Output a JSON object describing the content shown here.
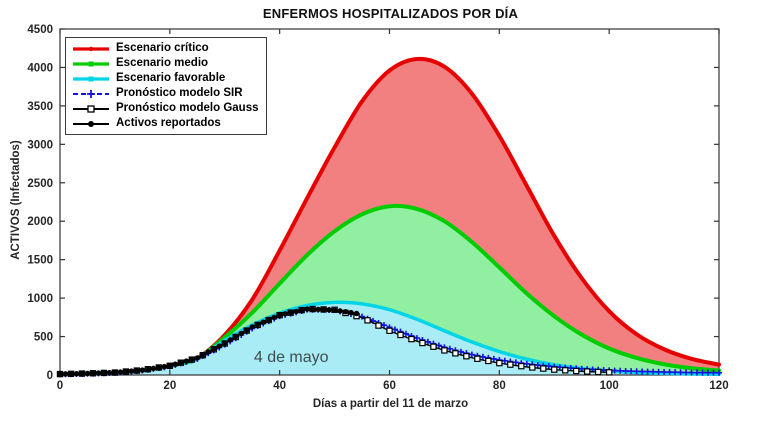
{
  "title": "ENFERMOS HOSPITALIZADOS POR DÍA",
  "chart_data": {
    "type": "line",
    "title": "ENFERMOS HOSPITALIZADOS POR DÍA",
    "xlabel": "Días a partir del 11 de marzo",
    "ylabel": "ACTIVOS (Infectados)",
    "xlim": [
      0,
      120
    ],
    "ylim": [
      0,
      4500
    ],
    "x_ticks": [
      0,
      20,
      40,
      60,
      80,
      100,
      120
    ],
    "y_ticks": [
      0,
      500,
      1000,
      1500,
      2000,
      2500,
      3000,
      3500,
      4000,
      4500
    ],
    "grid": false,
    "legend_position": "top-left",
    "axis_color": "#333333",
    "tick_label_color": "#262626",
    "annotation": {
      "text": "4 de mayo",
      "day": 35.3,
      "value": 170,
      "color": "#3d4d4d"
    },
    "series": [
      {
        "key": "escenario-critico",
        "name": "Escenario crítico",
        "color": "#e60000",
        "fill": "#f28080",
        "line": "solid",
        "width": 4,
        "marker": "dot",
        "marker_every": 0,
        "days": [
          0,
          5,
          10,
          15,
          20,
          25,
          30,
          35,
          40,
          45,
          50,
          55,
          60,
          65,
          70,
          75,
          80,
          85,
          90,
          95,
          100,
          105,
          110,
          115,
          120
        ],
        "values": [
          10,
          18,
          30,
          62,
          118,
          220,
          520,
          980,
          1620,
          2300,
          2960,
          3560,
          3960,
          4110,
          4010,
          3660,
          3110,
          2460,
          1810,
          1260,
          830,
          530,
          335,
          210,
          135
        ]
      },
      {
        "key": "escenario-medio",
        "name": "Escenario medio",
        "color": "#00cc00",
        "fill": "#90efa0",
        "line": "solid",
        "width": 4,
        "marker": "square",
        "marker_every": 0,
        "days": [
          0,
          5,
          10,
          15,
          20,
          25,
          30,
          35,
          40,
          45,
          50,
          55,
          60,
          65,
          70,
          75,
          80,
          85,
          90,
          95,
          100,
          105,
          110,
          115,
          120
        ],
        "values": [
          10,
          18,
          30,
          62,
          118,
          215,
          490,
          810,
          1190,
          1560,
          1870,
          2090,
          2195,
          2160,
          2000,
          1730,
          1400,
          1060,
          765,
          525,
          345,
          222,
          140,
          88,
          58
        ]
      },
      {
        "key": "escenario-favorable",
        "name": "Escenario favorable",
        "color": "#00d5e8",
        "fill": "#aaecf6",
        "line": "solid",
        "width": 3.5,
        "marker": "square",
        "marker_every": 0,
        "days": [
          0,
          5,
          10,
          15,
          20,
          25,
          30,
          35,
          40,
          45,
          50,
          55,
          60,
          65,
          70,
          75,
          80,
          85,
          90,
          95,
          100,
          105,
          110,
          115,
          120
        ],
        "values": [
          10,
          18,
          30,
          62,
          118,
          215,
          450,
          650,
          805,
          905,
          945,
          925,
          850,
          725,
          575,
          430,
          305,
          205,
          132,
          84,
          52,
          33,
          21,
          14,
          9
        ]
      },
      {
        "key": "pronostico-sir",
        "name": "Pronóstico modelo SIR",
        "color": "#1414dd",
        "line": "dashed",
        "width": 1.6,
        "marker": "plus",
        "marker_every": 1,
        "days": [
          0,
          5,
          10,
          15,
          20,
          25,
          30,
          35,
          40,
          45,
          50,
          55,
          60,
          65,
          70,
          75,
          80,
          85,
          90,
          95,
          100,
          105,
          110,
          115,
          120
        ],
        "values": [
          8,
          16,
          28,
          58,
          112,
          210,
          395,
          605,
          765,
          850,
          845,
          760,
          620,
          480,
          360,
          265,
          195,
          145,
          108,
          80,
          60,
          48,
          39,
          33,
          29
        ]
      },
      {
        "key": "pronostico-gauss",
        "name": "Pronóstico modelo Gauss",
        "color": "#000000",
        "line": "solid",
        "width": 1.3,
        "marker": "open-square",
        "marker_every": 2,
        "days": [
          0,
          5,
          10,
          15,
          20,
          25,
          30,
          35,
          40,
          45,
          50,
          55,
          60,
          65,
          70,
          75,
          80,
          85,
          90,
          95,
          100
        ],
        "values": [
          12,
          20,
          32,
          64,
          120,
          220,
          410,
          620,
          778,
          860,
          848,
          745,
          575,
          440,
          320,
          225,
          155,
          105,
          70,
          48,
          35
        ]
      },
      {
        "key": "activos-reportados",
        "name": "Activos reportados",
        "color": "#000000",
        "line": "solid",
        "width": 1.6,
        "marker": "circle",
        "marker_every": 1,
        "days": [
          0,
          5,
          10,
          15,
          20,
          25,
          30,
          35,
          40,
          45,
          50,
          54
        ],
        "values": [
          12,
          20,
          32,
          64,
          120,
          222,
          415,
          625,
          780,
          858,
          845,
          800
        ]
      }
    ]
  }
}
